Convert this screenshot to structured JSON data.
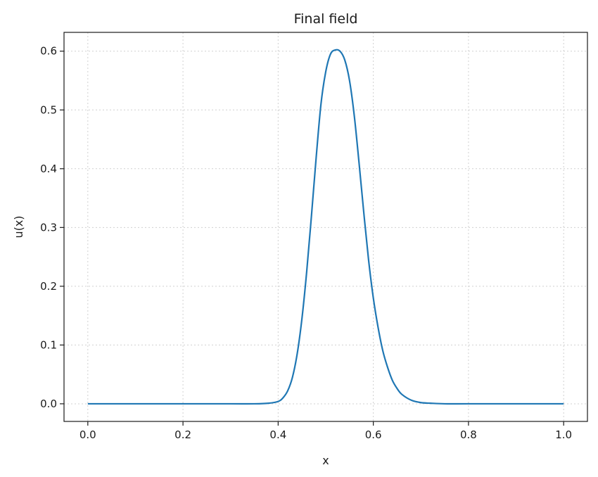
{
  "chart_data": {
    "type": "line",
    "title": "Final field",
    "xlabel": "x",
    "ylabel": "u(x)",
    "xlim": [
      -0.05,
      1.05
    ],
    "ylim": [
      -0.03,
      0.632
    ],
    "grid": true,
    "xticks": [
      0.0,
      0.2,
      0.4,
      0.6,
      0.8,
      1.0
    ],
    "xtick_labels": [
      "0.0",
      "0.2",
      "0.4",
      "0.6",
      "0.8",
      "1.0"
    ],
    "yticks": [
      0.0,
      0.1,
      0.2,
      0.3,
      0.4,
      0.5,
      0.6
    ],
    "ytick_labels": [
      "0.0",
      "0.1",
      "0.2",
      "0.3",
      "0.4",
      "0.5",
      "0.6"
    ],
    "series": [
      {
        "color": "#1f77b4",
        "x": [
          0.0,
          0.1,
          0.2,
          0.3,
          0.35,
          0.38,
          0.4,
          0.41,
          0.42,
          0.43,
          0.44,
          0.45,
          0.46,
          0.47,
          0.48,
          0.49,
          0.5,
          0.51,
          0.52,
          0.53,
          0.54,
          0.55,
          0.56,
          0.57,
          0.58,
          0.59,
          0.6,
          0.61,
          0.62,
          0.63,
          0.64,
          0.65,
          0.66,
          0.68,
          0.7,
          0.72,
          0.75,
          0.8,
          0.9,
          1.0
        ],
        "y": [
          0.0,
          0.0,
          0.0,
          0.0,
          0.0,
          0.001,
          0.004,
          0.01,
          0.022,
          0.045,
          0.085,
          0.145,
          0.225,
          0.32,
          0.42,
          0.51,
          0.565,
          0.595,
          0.602,
          0.6,
          0.585,
          0.55,
          0.49,
          0.41,
          0.325,
          0.245,
          0.18,
          0.13,
          0.09,
          0.062,
          0.04,
          0.026,
          0.016,
          0.006,
          0.002,
          0.001,
          0.0,
          0.0,
          0.0,
          0.0
        ]
      }
    ]
  }
}
